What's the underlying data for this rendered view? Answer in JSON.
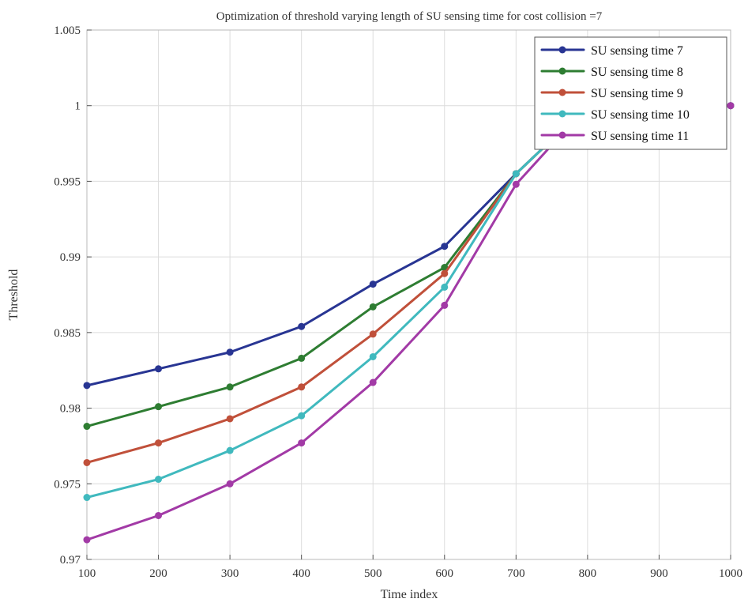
{
  "chart_data": {
    "type": "line",
    "title": "Optimization of threshold varying length of SU sensing time for cost collision =7",
    "xlabel": "Time index",
    "ylabel": "Threshold",
    "xlim": [
      100,
      1000
    ],
    "ylim": [
      0.97,
      1.005
    ],
    "xticks": [
      100,
      200,
      300,
      400,
      500,
      600,
      700,
      800,
      900,
      1000
    ],
    "yticks": [
      0.97,
      0.975,
      0.98,
      0.985,
      0.99,
      0.995,
      1,
      1.005
    ],
    "xtick_labels": [
      "100",
      "200",
      "300",
      "400",
      "500",
      "600",
      "700",
      "800",
      "900",
      "1000"
    ],
    "ytick_labels": [
      "0.97",
      "0.975",
      "0.98",
      "0.985",
      "0.99",
      "0.995",
      "1",
      "1.005"
    ],
    "grid": true,
    "legend_position": "top-right",
    "x": [
      100,
      200,
      300,
      400,
      500,
      600,
      700,
      800,
      900,
      1000
    ],
    "series": [
      {
        "name": "SU sensing time 7",
        "color": "#283593",
        "values": [
          0.9815,
          0.9826,
          0.9837,
          0.9854,
          0.9882,
          0.9907,
          0.9955,
          1.0,
          1.0,
          1.0
        ]
      },
      {
        "name": "SU sensing time 8",
        "color": "#2e7d32",
        "values": [
          0.9788,
          0.9801,
          0.9814,
          0.9833,
          0.9867,
          0.9893,
          0.9955,
          1.0,
          1.0,
          1.0
        ]
      },
      {
        "name": "SU sensing time 9",
        "color": "#c0503a",
        "values": [
          0.9764,
          0.9777,
          0.9793,
          0.9814,
          0.9849,
          0.9889,
          0.9955,
          1.0,
          1.0,
          1.0
        ]
      },
      {
        "name": "SU sensing time 10",
        "color": "#40b9be",
        "values": [
          0.9741,
          0.9753,
          0.9772,
          0.9795,
          0.9834,
          0.988,
          0.9955,
          1.0,
          1.0,
          1.0
        ]
      },
      {
        "name": "SU sensing time 11",
        "color": "#a23aa6",
        "values": [
          0.9713,
          0.9729,
          0.975,
          0.9777,
          0.9817,
          0.9868,
          0.9948,
          1.0,
          1.0,
          1.0
        ]
      }
    ]
  }
}
